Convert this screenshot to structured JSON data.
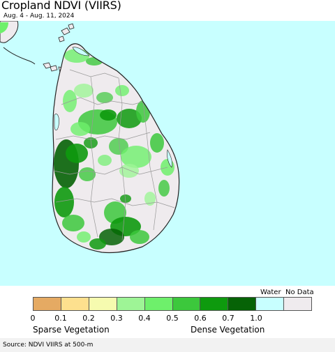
{
  "title": "Cropland NDVI (VIIRS)",
  "subtitle": "Aug. 4 - Aug. 11, 2024",
  "legend": {
    "water_label": "Water",
    "nodata_label": "No Data",
    "ticks": [
      "0",
      "0.1",
      "0.2",
      "0.3",
      "0.4",
      "0.5",
      "0.6",
      "0.7",
      "1.0"
    ],
    "classes": [
      {
        "range": "0-0.1",
        "color": "#e5aa63"
      },
      {
        "range": "0.1-0.2",
        "color": "#fde08e"
      },
      {
        "range": "0.2-0.3",
        "color": "#f6fbaf"
      },
      {
        "range": "0.3-0.4",
        "color": "#9ef596"
      },
      {
        "range": "0.4-0.5",
        "color": "#6ef06b"
      },
      {
        "range": "0.5-0.6",
        "color": "#3cc83c"
      },
      {
        "range": "0.6-0.7",
        "color": "#0e9a0e"
      },
      {
        "range": "0.7-1.0",
        "color": "#066306"
      },
      {
        "range": "water",
        "color": "#c8ffff"
      },
      {
        "range": "no data",
        "color": "#efebee"
      }
    ],
    "sparse_label": "Sparse Vegetation",
    "dense_label": "Dense Vegetation"
  },
  "source": "Source: NDVI VIIRS at 500-m",
  "colors": {
    "ocean": "#c8ffff",
    "land": "#f0ecef",
    "border": "#222222",
    "district_lines": "#999999"
  }
}
